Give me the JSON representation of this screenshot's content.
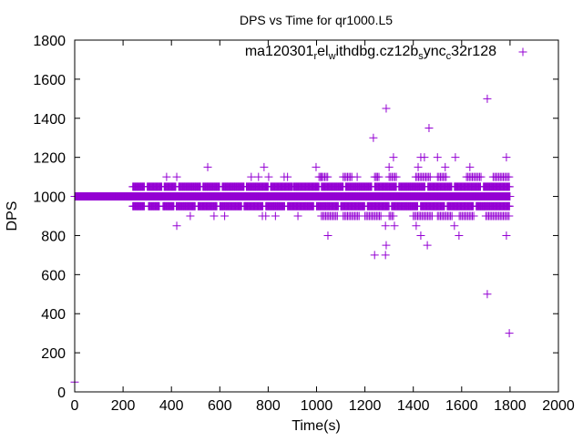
{
  "chart_data": {
    "type": "scatter",
    "title": "DPS vs Time for qr1000.L5",
    "xlabel": "Time(s)",
    "ylabel": "DPS",
    "xlim": [
      0,
      2000
    ],
    "ylim": [
      0,
      1800
    ],
    "xticks": [
      0,
      200,
      400,
      600,
      800,
      1000,
      1200,
      1400,
      1600,
      1800,
      2000
    ],
    "yticks": [
      0,
      200,
      400,
      600,
      800,
      1000,
      1200,
      1400,
      1600,
      1800
    ],
    "grid": false,
    "legend_position": "top-right",
    "color": "#9400d3",
    "marker": "+",
    "series": [
      {
        "name_parts": [
          {
            "t": "ma120301",
            "sub": false
          },
          {
            "t": "r",
            "sub": true
          },
          {
            "t": "el",
            "sub": false
          },
          {
            "t": "w",
            "sub": true
          },
          {
            "t": "ithdbg.cz12b",
            "sub": false
          },
          {
            "t": "s",
            "sub": true
          },
          {
            "t": "ync",
            "sub": false
          },
          {
            "t": "c",
            "sub": true
          },
          {
            "t": "32r128",
            "sub": false
          }
        ],
        "name": "ma120301_rel_withdbg.cz12b_sync_c32r128",
        "dense_bands": [
          {
            "y": 1000,
            "step": 2,
            "x_ranges": [
              [
                0,
                1800
              ]
            ]
          },
          {
            "y": 1050,
            "step": 3,
            "x_ranges": [
              [
                240,
                290
              ],
              [
                300,
                360
              ],
              [
                370,
                420
              ],
              [
                430,
                520
              ],
              [
                530,
                600
              ],
              [
                610,
                700
              ],
              [
                710,
                800
              ],
              [
                810,
                900
              ],
              [
                905,
                1010
              ],
              [
                1020,
                1110
              ],
              [
                1120,
                1230
              ],
              [
                1240,
                1330
              ],
              [
                1340,
                1450
              ],
              [
                1460,
                1560
              ],
              [
                1570,
                1680
              ],
              [
                1690,
                1800
              ]
            ]
          },
          {
            "y": 950,
            "step": 3,
            "x_ranges": [
              [
                240,
                290
              ],
              [
                305,
                350
              ],
              [
                365,
                410
              ],
              [
                420,
                500
              ],
              [
                510,
                590
              ],
              [
                600,
                690
              ],
              [
                700,
                780
              ],
              [
                790,
                870
              ],
              [
                880,
                990
              ],
              [
                1000,
                1090
              ],
              [
                1100,
                1200
              ],
              [
                1210,
                1300
              ],
              [
                1310,
                1420
              ],
              [
                1430,
                1530
              ],
              [
                1540,
                1650
              ],
              [
                1660,
                1800
              ]
            ]
          },
          {
            "y": 1100,
            "step": 6,
            "x_ranges": [
              [
                1010,
                1050
              ],
              [
                1110,
                1150
              ],
              [
                1240,
                1260
              ],
              [
                1300,
                1330
              ],
              [
                1410,
                1470
              ],
              [
                1500,
                1540
              ],
              [
                1620,
                1680
              ],
              [
                1730,
                1800
              ]
            ]
          },
          {
            "y": 900,
            "step": 6,
            "x_ranges": [
              [
                1020,
                1090
              ],
              [
                1110,
                1180
              ],
              [
                1200,
                1270
              ],
              [
                1300,
                1320
              ],
              [
                1400,
                1480
              ],
              [
                1500,
                1560
              ],
              [
                1590,
                1650
              ],
              [
                1700,
                1800
              ]
            ]
          }
        ],
        "points": [
          [
            0,
            50
          ],
          [
            422,
            850
          ],
          [
            380,
            1100
          ],
          [
            422,
            1100
          ],
          [
            550,
            1150
          ],
          [
            576,
            900
          ],
          [
            478,
            900
          ],
          [
            620,
            900
          ],
          [
            730,
            1100
          ],
          [
            783,
            1150
          ],
          [
            802,
            1100
          ],
          [
            776,
            900
          ],
          [
            790,
            900
          ],
          [
            866,
            1100
          ],
          [
            830,
            900
          ],
          [
            923,
            900
          ],
          [
            998,
            1150
          ],
          [
            1047,
            800
          ],
          [
            1020,
            1100
          ],
          [
            1235,
            1300
          ],
          [
            1288,
            1450
          ],
          [
            1240,
            700
          ],
          [
            1285,
            700
          ],
          [
            1288,
            750
          ],
          [
            1285,
            850
          ],
          [
            1318,
            1200
          ],
          [
            1322,
            850
          ],
          [
            1300,
            1150
          ],
          [
            1168,
            1100
          ],
          [
            1247,
            1100
          ],
          [
            1420,
            1150
          ],
          [
            1431,
            1200
          ],
          [
            1446,
            1200
          ],
          [
            1412,
            850
          ],
          [
            1431,
            800
          ],
          [
            1458,
            750
          ],
          [
            1465,
            1350
          ],
          [
            1500,
            1200
          ],
          [
            1532,
            1150
          ],
          [
            1574,
            1200
          ],
          [
            1570,
            850
          ],
          [
            1589,
            800
          ],
          [
            1634,
            1150
          ],
          [
            1706,
            1500
          ],
          [
            1706,
            500
          ],
          [
            1785,
            1200
          ],
          [
            1785,
            800
          ],
          [
            1797,
            300
          ],
          [
            880,
            1100
          ],
          [
            760,
            1100
          ]
        ]
      }
    ]
  }
}
